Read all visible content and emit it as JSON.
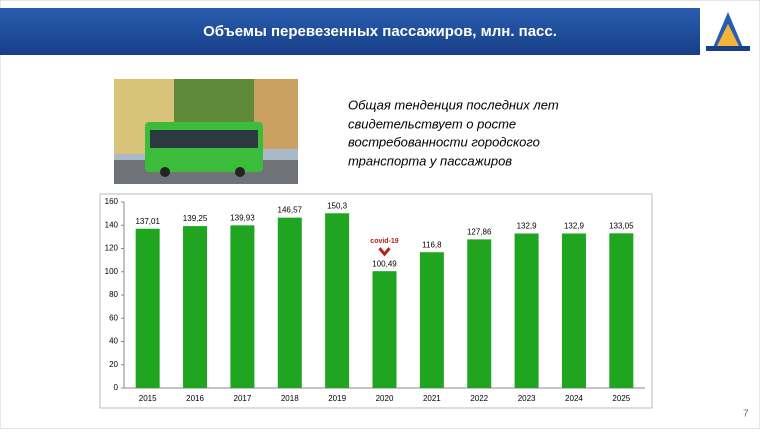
{
  "header": {
    "title": "Объемы перевезенных пассажиров, млн. пасс."
  },
  "description": [
    "Общая тенденция последних лет",
    "свидетельствует о росте",
    "востребованности городского",
    "транспорта у пассажиров"
  ],
  "page_number": "7",
  "chart_data": {
    "type": "bar",
    "categories": [
      "2015",
      "2016",
      "2017",
      "2018",
      "2019",
      "2020",
      "2021",
      "2022",
      "2023",
      "2024",
      "2025"
    ],
    "values": [
      137.01,
      139.25,
      139.93,
      146.57,
      150.3,
      100.49,
      116.8,
      127.86,
      132.9,
      132.9,
      133.05
    ],
    "value_labels": [
      "137,01",
      "139,25",
      "139,93",
      "146,57",
      "150,3",
      "100,49",
      "116,8",
      "127,86",
      "132,9",
      "132,9",
      "133,05"
    ],
    "color": "#1fa51f",
    "ylim": [
      0,
      160
    ],
    "yticks": [
      0,
      20,
      40,
      60,
      80,
      100,
      120,
      140,
      160
    ],
    "grid": false,
    "annotation": {
      "text": "covid-19",
      "category": "2020"
    }
  }
}
